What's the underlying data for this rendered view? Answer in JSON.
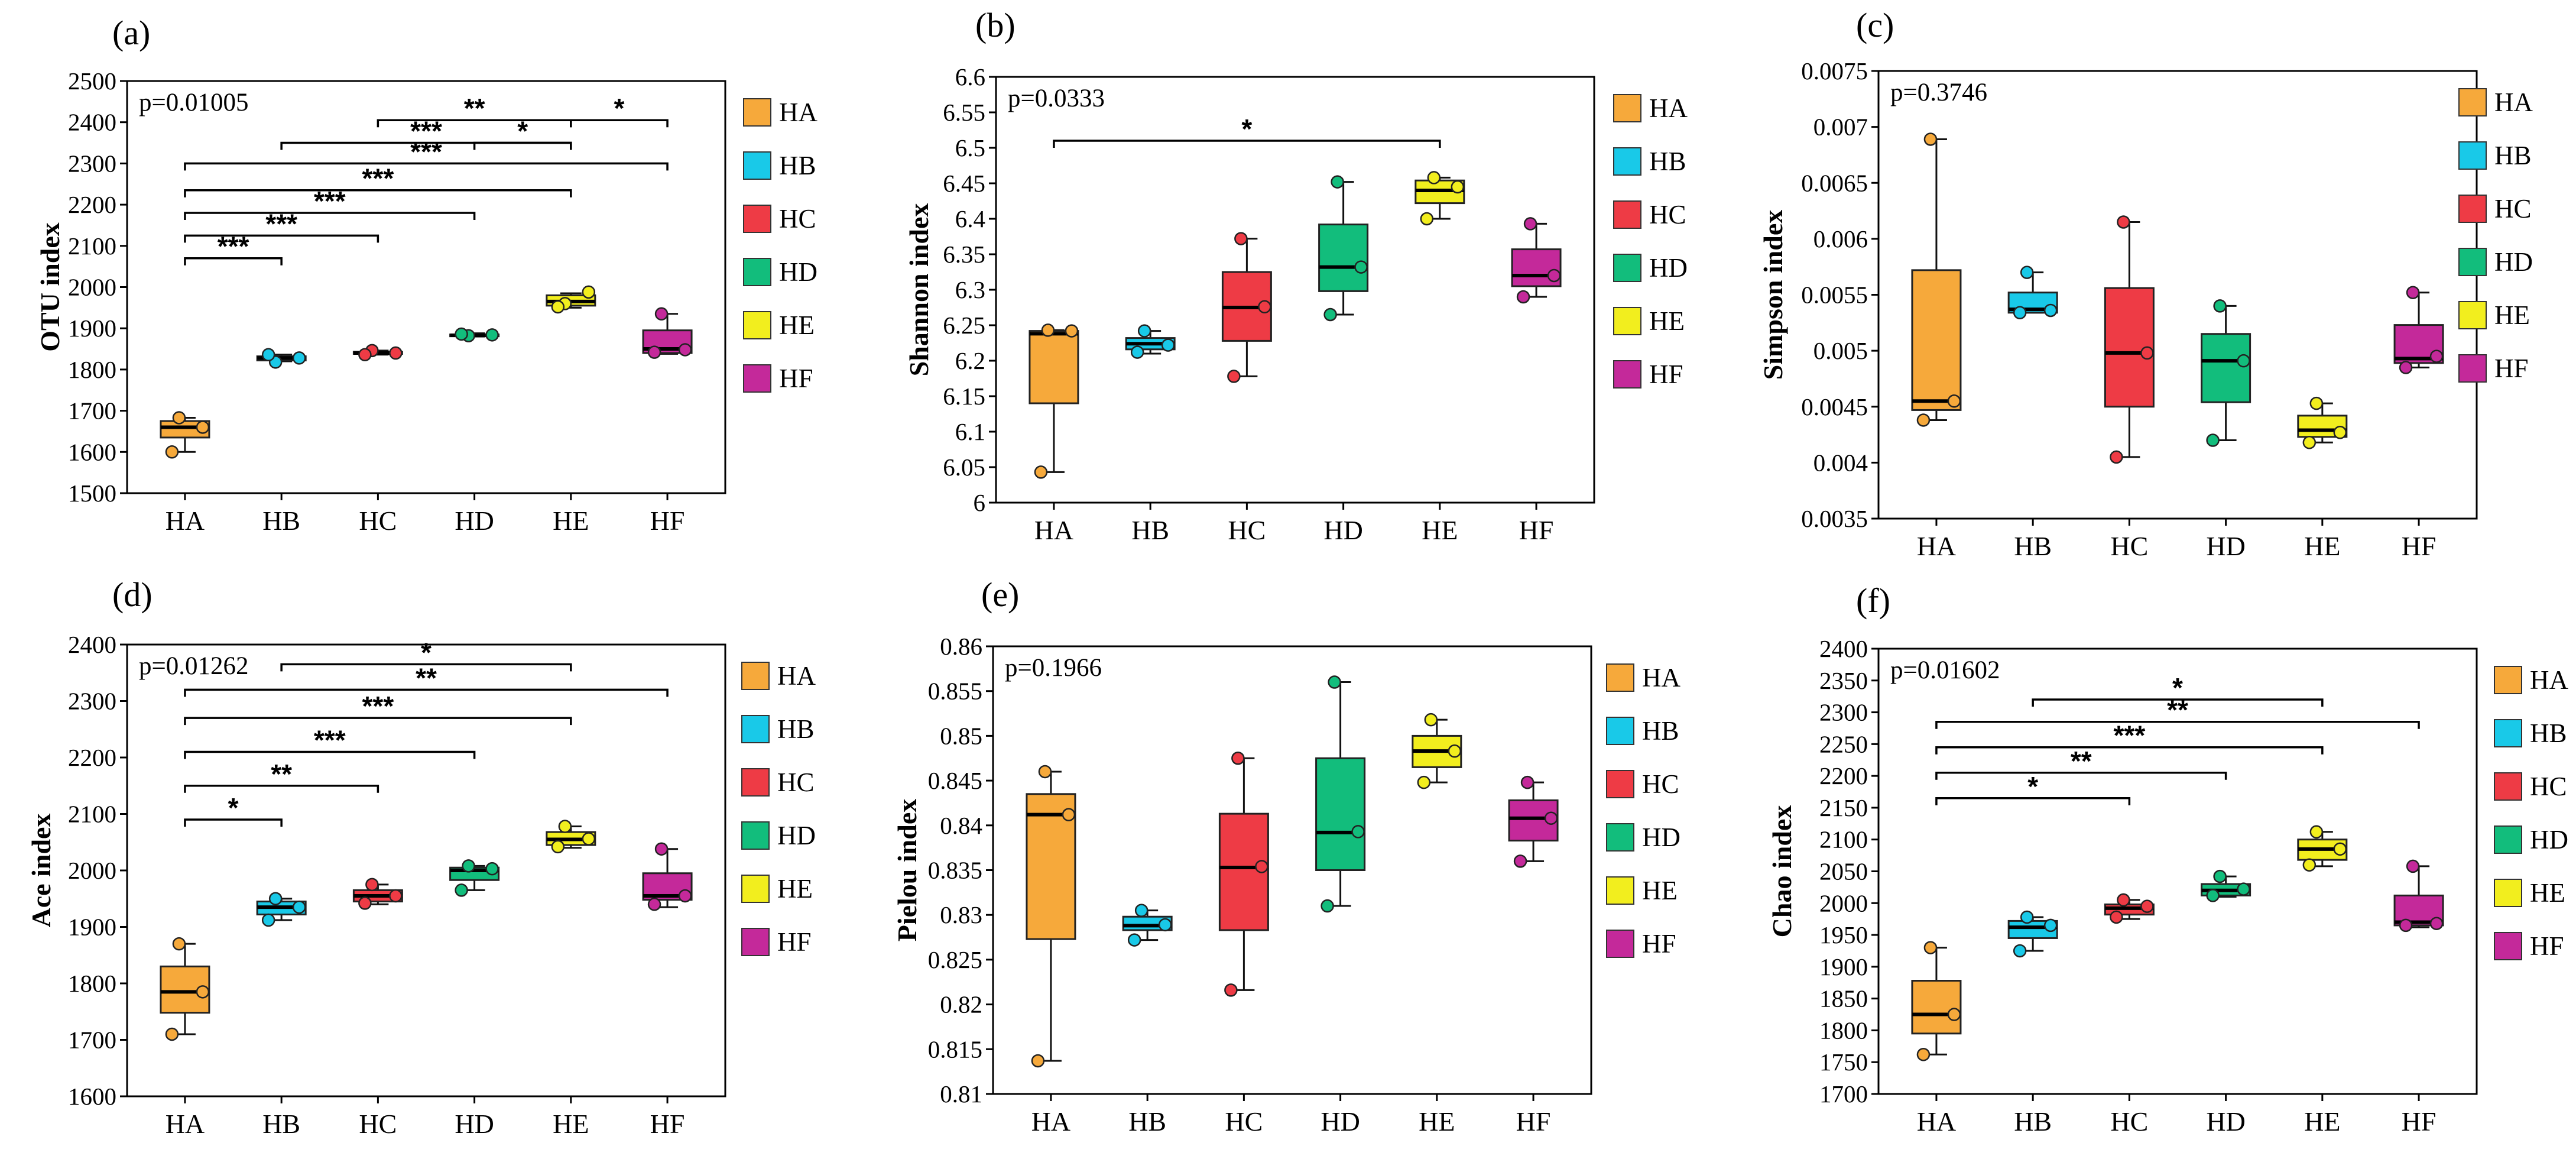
{
  "colors": {
    "HA": "#f6a93b",
    "HB": "#19c9e8",
    "HC": "#ee3b45",
    "HD": "#12bd7c",
    "HE": "#f2ee1e",
    "HF": "#c4299a"
  },
  "legend": [
    "HA",
    "HB",
    "HC",
    "HD",
    "HE",
    "HF"
  ],
  "chart_data": [
    {
      "type": "box",
      "panel": "(a)",
      "ylabel": "OTU index",
      "pvalue": "p=0.01005",
      "categories": [
        "HA",
        "HB",
        "HC",
        "HD",
        "HE",
        "HF"
      ],
      "ylim": [
        1500,
        2500
      ],
      "yticks": [
        1500,
        1600,
        1700,
        1800,
        1900,
        2000,
        2100,
        2200,
        2300,
        2400,
        2500
      ],
      "ytick_labels": [
        "1500",
        "1600",
        "1700",
        "1800",
        "1900",
        "2000",
        "2100",
        "2200",
        "2300",
        "2400",
        "2500"
      ],
      "boxes": [
        {
          "q1": 1635,
          "median": 1660,
          "q3": 1675,
          "whislo": 1600,
          "whishi": 1683,
          "points": [
            1683,
            1660,
            1600
          ],
          "mean": 1650
        },
        {
          "q1": 1822,
          "median": 1828,
          "q3": 1832,
          "whislo": 1820,
          "whishi": 1836,
          "points": [
            1818,
            1828,
            1836
          ],
          "mean": 1828
        },
        {
          "q1": 1838,
          "median": 1840,
          "q3": 1843,
          "whislo": 1836,
          "whishi": 1846,
          "points": [
            1846,
            1840,
            1836
          ],
          "mean": 1840
        },
        {
          "q1": 1881,
          "median": 1883,
          "q3": 1885,
          "whislo": 1880,
          "whishi": 1888,
          "points": [
            1882,
            1884,
            1886
          ],
          "mean": 1883
        },
        {
          "q1": 1955,
          "median": 1965,
          "q3": 1980,
          "whislo": 1950,
          "whishi": 1985,
          "points": [
            1960,
            1988,
            1952
          ],
          "mean": 1968
        },
        {
          "q1": 1840,
          "median": 1850,
          "q3": 1895,
          "whislo": 1838,
          "whishi": 1935,
          "points": [
            1935,
            1848,
            1842
          ],
          "mean": 1845
        }
      ],
      "brackets": [
        {
          "from": "HC",
          "to": "HE",
          "y": 2405,
          "label": "**"
        },
        {
          "from": "HE",
          "to": "HF",
          "y": 2405,
          "label": "*"
        },
        {
          "from": "HB",
          "to": "HE",
          "y": 2350,
          "label": "***"
        },
        {
          "from": "HD",
          "to": "HE",
          "y": 2350,
          "label": "*"
        },
        {
          "from": "HA",
          "to": "HF",
          "y": 2300,
          "label": "***"
        },
        {
          "from": "HA",
          "to": "HE",
          "y": 2235,
          "label": "***"
        },
        {
          "from": "HA",
          "to": "HD",
          "y": 2180,
          "label": "***"
        },
        {
          "from": "HA",
          "to": "HC",
          "y": 2125,
          "label": "***"
        },
        {
          "from": "HA",
          "to": "HB",
          "y": 2070,
          "label": "***"
        }
      ]
    },
    {
      "type": "box",
      "panel": "(b)",
      "ylabel": "Shannon index",
      "pvalue": "p=0.0333",
      "categories": [
        "HA",
        "HB",
        "HC",
        "HD",
        "HE",
        "HF"
      ],
      "ylim": [
        6,
        6.6
      ],
      "yticks": [
        6,
        6.05,
        6.1,
        6.15,
        6.2,
        6.25,
        6.3,
        6.35,
        6.4,
        6.45,
        6.5,
        6.55,
        6.6
      ],
      "ytick_labels": [
        "6",
        "6.05",
        "6.1",
        "6.15",
        "6.2",
        "6.25",
        "6.3",
        "6.35",
        "6.4",
        "6.45",
        "6.5",
        "6.55",
        "6.6"
      ],
      "boxes": [
        {
          "q1": 6.14,
          "median": 6.238,
          "q3": 6.242,
          "whislo": 6.043,
          "whishi": 6.243,
          "points": [
            6.243,
            6.242,
            6.043
          ],
          "mean": 6.176
        },
        {
          "q1": 6.216,
          "median": 6.224,
          "q3": 6.232,
          "whislo": 6.21,
          "whishi": 6.242,
          "points": [
            6.242,
            6.222,
            6.212
          ],
          "mean": 6.225
        },
        {
          "q1": 6.228,
          "median": 6.275,
          "q3": 6.325,
          "whislo": 6.178,
          "whishi": 6.372,
          "points": [
            6.372,
            6.276,
            6.178
          ],
          "mean": 6.275
        },
        {
          "q1": 6.298,
          "median": 6.332,
          "q3": 6.392,
          "whislo": 6.265,
          "whishi": 6.452,
          "points": [
            6.452,
            6.332,
            6.265
          ],
          "mean": 6.35
        },
        {
          "q1": 6.422,
          "median": 6.44,
          "q3": 6.454,
          "whislo": 6.4,
          "whishi": 6.458,
          "points": [
            6.458,
            6.445,
            6.4
          ],
          "mean": 6.434
        },
        {
          "q1": 6.305,
          "median": 6.32,
          "q3": 6.357,
          "whislo": 6.29,
          "whishi": 6.393,
          "points": [
            6.393,
            6.32,
            6.29
          ],
          "mean": 6.334
        }
      ],
      "brackets": [
        {
          "from": "HA",
          "to": "HE",
          "y": 6.51,
          "label": "*"
        }
      ]
    },
    {
      "type": "box",
      "panel": "(c)",
      "ylabel": "Simpson index",
      "pvalue": "p=0.3746",
      "categories": [
        "HA",
        "HB",
        "HC",
        "HD",
        "HE",
        "HF"
      ],
      "ylim": [
        0.0035,
        0.0075
      ],
      "yticks": [
        0.0035,
        0.004,
        0.0045,
        0.005,
        0.0055,
        0.006,
        0.0065,
        0.007,
        0.0075
      ],
      "ytick_labels": [
        "0.0035",
        "0.004",
        "0.0045",
        "0.005",
        "0.0055",
        "0.006",
        "0.0065",
        "0.007",
        "0.0075"
      ],
      "boxes": [
        {
          "q1": 0.00447,
          "median": 0.00455,
          "q3": 0.00572,
          "whislo": 0.00438,
          "whishi": 0.00689,
          "points": [
            0.00689,
            0.00455,
            0.00438
          ],
          "mean": 0.00527
        },
        {
          "q1": 0.00534,
          "median": 0.00537,
          "q3": 0.00552,
          "whislo": 0.00534,
          "whishi": 0.0057,
          "points": [
            0.0057,
            0.00536,
            0.00534
          ],
          "mean": 0.00547
        },
        {
          "q1": 0.0045,
          "median": 0.00498,
          "q3": 0.00556,
          "whislo": 0.00405,
          "whishi": 0.00615,
          "points": [
            0.00615,
            0.00498,
            0.00405
          ],
          "mean": 0.00506
        },
        {
          "q1": 0.00454,
          "median": 0.00491,
          "q3": 0.00515,
          "whislo": 0.0042,
          "whishi": 0.0054,
          "points": [
            0.0054,
            0.00491,
            0.0042
          ],
          "mean": 0.0048
        },
        {
          "q1": 0.00423,
          "median": 0.00429,
          "q3": 0.00442,
          "whislo": 0.00418,
          "whishi": 0.00453,
          "points": [
            0.00453,
            0.00427,
            0.00418
          ],
          "mean": 0.00433
        },
        {
          "q1": 0.00489,
          "median": 0.00493,
          "q3": 0.00523,
          "whislo": 0.00485,
          "whishi": 0.00552,
          "points": [
            0.00552,
            0.00495,
            0.00485
          ],
          "mean": 0.00511
        }
      ],
      "brackets": []
    },
    {
      "type": "box",
      "panel": "(d)",
      "ylabel": "Ace index",
      "pvalue": "p=0.01262",
      "categories": [
        "HA",
        "HB",
        "HC",
        "HD",
        "HE",
        "HF"
      ],
      "ylim": [
        1600,
        2400
      ],
      "yticks": [
        1600,
        1700,
        1800,
        1900,
        2000,
        2100,
        2200,
        2300,
        2400
      ],
      "ytick_labels": [
        "1600",
        "1700",
        "1800",
        "1900",
        "2000",
        "2100",
        "2200",
        "2300",
        "2400"
      ],
      "boxes": [
        {
          "q1": 1748,
          "median": 1785,
          "q3": 1830,
          "whislo": 1710,
          "whishi": 1870,
          "points": [
            1870,
            1785,
            1710
          ],
          "mean": 1788
        },
        {
          "q1": 1922,
          "median": 1935,
          "q3": 1945,
          "whislo": 1912,
          "whishi": 1950,
          "points": [
            1950,
            1935,
            1912
          ],
          "mean": 1932
        },
        {
          "q1": 1945,
          "median": 1955,
          "q3": 1965,
          "whislo": 1940,
          "whishi": 1975,
          "points": [
            1975,
            1955,
            1942
          ],
          "mean": 1957
        },
        {
          "q1": 1983,
          "median": 2000,
          "q3": 2005,
          "whislo": 1965,
          "whishi": 2008,
          "points": [
            2008,
            2003,
            1965
          ],
          "mean": 1992
        },
        {
          "q1": 2045,
          "median": 2055,
          "q3": 2068,
          "whislo": 2040,
          "whishi": 2078,
          "points": [
            2078,
            2056,
            2042
          ],
          "mean": 2059
        },
        {
          "q1": 1948,
          "median": 1955,
          "q3": 1995,
          "whislo": 1935,
          "whishi": 2038,
          "points": [
            2038,
            1955,
            1940
          ],
          "mean": 1978
        }
      ],
      "brackets": [
        {
          "from": "HB",
          "to": "HE",
          "y": 2365,
          "label": "*"
        },
        {
          "from": "HA",
          "to": "HF",
          "y": 2320,
          "label": "**"
        },
        {
          "from": "HA",
          "to": "HE",
          "y": 2270,
          "label": "***"
        },
        {
          "from": "HA",
          "to": "HD",
          "y": 2210,
          "label": "***"
        },
        {
          "from": "HA",
          "to": "HC",
          "y": 2150,
          "label": "**"
        },
        {
          "from": "HA",
          "to": "HB",
          "y": 2090,
          "label": "*"
        }
      ]
    },
    {
      "type": "box",
      "panel": "(e)",
      "ylabel": "Pielou index",
      "pvalue": "p=0.1966",
      "categories": [
        "HA",
        "HB",
        "HC",
        "HD",
        "HE",
        "HF"
      ],
      "ylim": [
        0.81,
        0.86
      ],
      "yticks": [
        0.81,
        0.815,
        0.82,
        0.825,
        0.83,
        0.835,
        0.84,
        0.845,
        0.85,
        0.855,
        0.86
      ],
      "ytick_labels": [
        "0.81",
        "0.815",
        "0.82",
        "0.825",
        "0.83",
        "0.835",
        "0.84",
        "0.845",
        "0.85",
        "0.855",
        "0.86"
      ],
      "boxes": [
        {
          "q1": 0.8273,
          "median": 0.8412,
          "q3": 0.8435,
          "whislo": 0.8137,
          "whishi": 0.846,
          "points": [
            0.846,
            0.8412,
            0.8137
          ],
          "mean": 0.8336
        },
        {
          "q1": 0.8283,
          "median": 0.8288,
          "q3": 0.8298,
          "whislo": 0.8272,
          "whishi": 0.8305,
          "points": [
            0.8305,
            0.8289,
            0.8272
          ],
          "mean": 0.8289
        },
        {
          "q1": 0.8283,
          "median": 0.8353,
          "q3": 0.8413,
          "whislo": 0.8216,
          "whishi": 0.8475,
          "points": [
            0.8475,
            0.8354,
            0.8216
          ],
          "mean": 0.8348
        },
        {
          "q1": 0.835,
          "median": 0.8392,
          "q3": 0.8475,
          "whislo": 0.831,
          "whishi": 0.856,
          "points": [
            0.856,
            0.8393,
            0.831
          ],
          "mean": 0.8421
        },
        {
          "q1": 0.8465,
          "median": 0.8483,
          "q3": 0.85,
          "whislo": 0.8448,
          "whishi": 0.8518,
          "points": [
            0.8518,
            0.8483,
            0.8448
          ],
          "mean": 0.8483
        },
        {
          "q1": 0.8383,
          "median": 0.8408,
          "q3": 0.8428,
          "whislo": 0.836,
          "whishi": 0.8448,
          "points": [
            0.8448,
            0.8408,
            0.836
          ],
          "mean": 0.8405
        }
      ],
      "brackets": []
    },
    {
      "type": "box",
      "panel": "(f)",
      "ylabel": "Chao index",
      "pvalue": "p=0.01602",
      "categories": [
        "HA",
        "HB",
        "HC",
        "HD",
        "HE",
        "HF"
      ],
      "ylim": [
        1700,
        2400
      ],
      "yticks": [
        1700,
        1750,
        1800,
        1850,
        1900,
        1950,
        2000,
        2050,
        2100,
        2150,
        2200,
        2250,
        2300,
        2350,
        2400
      ],
      "ytick_labels": [
        "1700",
        "1750",
        "1800",
        "1850",
        "1900",
        "1950",
        "2000",
        "2050",
        "2100",
        "2150",
        "2200",
        "2250",
        "2300",
        "2350",
        "2400"
      ],
      "boxes": [
        {
          "q1": 1795,
          "median": 1825,
          "q3": 1878,
          "whislo": 1762,
          "whishi": 1930,
          "points": [
            1930,
            1825,
            1762
          ],
          "mean": 1839
        },
        {
          "q1": 1945,
          "median": 1962,
          "q3": 1972,
          "whislo": 1925,
          "whishi": 1978,
          "points": [
            1978,
            1965,
            1925
          ],
          "mean": 1956
        },
        {
          "q1": 1982,
          "median": 1992,
          "q3": 1998,
          "whislo": 1975,
          "whishi": 2005,
          "points": [
            2005,
            1995,
            1978
          ],
          "mean": 1993
        },
        {
          "q1": 2012,
          "median": 2020,
          "q3": 2030,
          "whislo": 2010,
          "whishi": 2042,
          "points": [
            2042,
            2022,
            2012
          ],
          "mean": 2025
        },
        {
          "q1": 2068,
          "median": 2085,
          "q3": 2100,
          "whislo": 2058,
          "whishi": 2112,
          "points": [
            2112,
            2085,
            2060
          ],
          "mean": 2086
        },
        {
          "q1": 1965,
          "median": 1970,
          "q3": 2012,
          "whislo": 1962,
          "whishi": 2058,
          "points": [
            2058,
            1968,
            1965
          ],
          "mean": 1997
        }
      ],
      "brackets": [
        {
          "from": "HB",
          "to": "HE",
          "y": 2320,
          "label": "*"
        },
        {
          "from": "HA",
          "to": "HF",
          "y": 2285,
          "label": "**"
        },
        {
          "from": "HA",
          "to": "HE",
          "y": 2245,
          "label": "***"
        },
        {
          "from": "HA",
          "to": "HD",
          "y": 2205,
          "label": "**"
        },
        {
          "from": "HA",
          "to": "HC",
          "y": 2165,
          "label": "*"
        }
      ]
    }
  ]
}
